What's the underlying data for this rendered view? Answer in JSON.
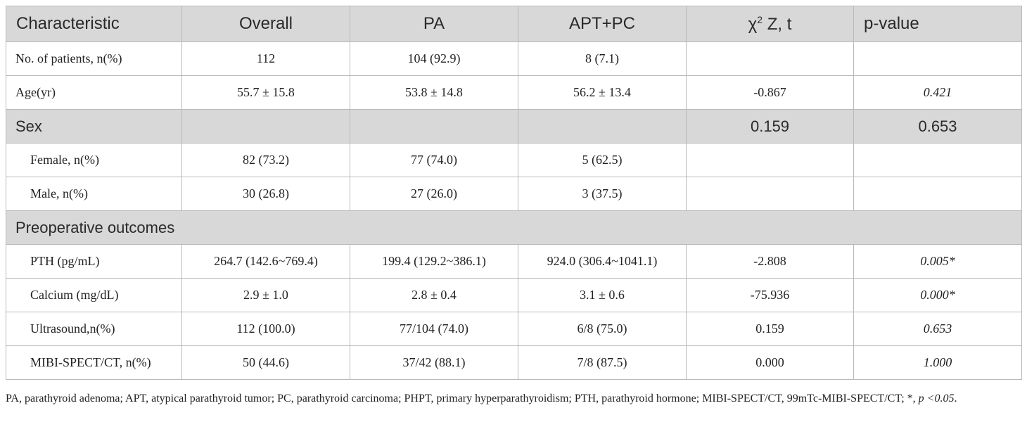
{
  "header": {
    "characteristic": "Characteristic",
    "overall": "Overall",
    "pa": "PA",
    "apt_pc": "APT+PC",
    "stat_chi": "χ",
    "stat_sup": "2",
    "stat_rest": " Z, t",
    "pvalue": "p-value"
  },
  "rows": {
    "patients": {
      "label": "No. of patients, n(%)",
      "overall": "112",
      "pa": "104 (92.9)",
      "apt_pc": "8 (7.1)",
      "stat": "",
      "p": ""
    },
    "age": {
      "label": "Age(yr)",
      "overall": "55.7 ± 15.8",
      "pa": "53.8 ± 14.8",
      "apt_pc": "56.2 ± 13.4",
      "stat": "-0.867",
      "p": "0.421"
    },
    "sex": {
      "label": "Sex",
      "stat": "0.159",
      "p": "0.653"
    },
    "female": {
      "label": "Female, n(%)",
      "overall": "82 (73.2)",
      "pa": "77 (74.0)",
      "apt_pc": "5 (62.5)",
      "stat": "",
      "p": ""
    },
    "male": {
      "label": "Male, n(%)",
      "overall": "30 (26.8)",
      "pa": "27 (26.0)",
      "apt_pc": "3 (37.5)",
      "stat": "",
      "p": ""
    },
    "preop": {
      "label": "Preoperative outcomes"
    },
    "pth": {
      "label": "PTH (pg/mL)",
      "overall": "264.7 (142.6~769.4)",
      "pa": "199.4 (129.2~386.1)",
      "apt_pc": "924.0 (306.4~1041.1)",
      "stat": "-2.808",
      "p": "0.005*"
    },
    "calcium": {
      "label": "Calcium (mg/dL)",
      "overall": "2.9 ± 1.0",
      "pa": "2.8 ± 0.4",
      "apt_pc": "3.1 ± 0.6",
      "stat": "-75.936",
      "p": "0.000*"
    },
    "ultrasound": {
      "label": "Ultrasound,n(%)",
      "overall": "112 (100.0)",
      "pa": "77/104 (74.0)",
      "apt_pc": "6/8 (75.0)",
      "stat": "0.159",
      "p": "0.653"
    },
    "mibi": {
      "label": "MIBI-SPECT/CT, n(%)",
      "overall": "50 (44.6)",
      "pa": "37/42 (88.1)",
      "apt_pc": "7/8 (87.5)",
      "stat": "0.000",
      "p": "1.000"
    }
  },
  "footnote": {
    "text": "PA, parathyroid adenoma; APT, atypical parathyroid tumor; PC, parathyroid carcinoma; PHPT, primary hyperparathyroidism; PTH, parathyroid hormone; MIBI-SPECT/CT, 99mTc-MIBI-SPECT/CT; *, ",
    "italic": "p <0.05",
    "end": "."
  }
}
